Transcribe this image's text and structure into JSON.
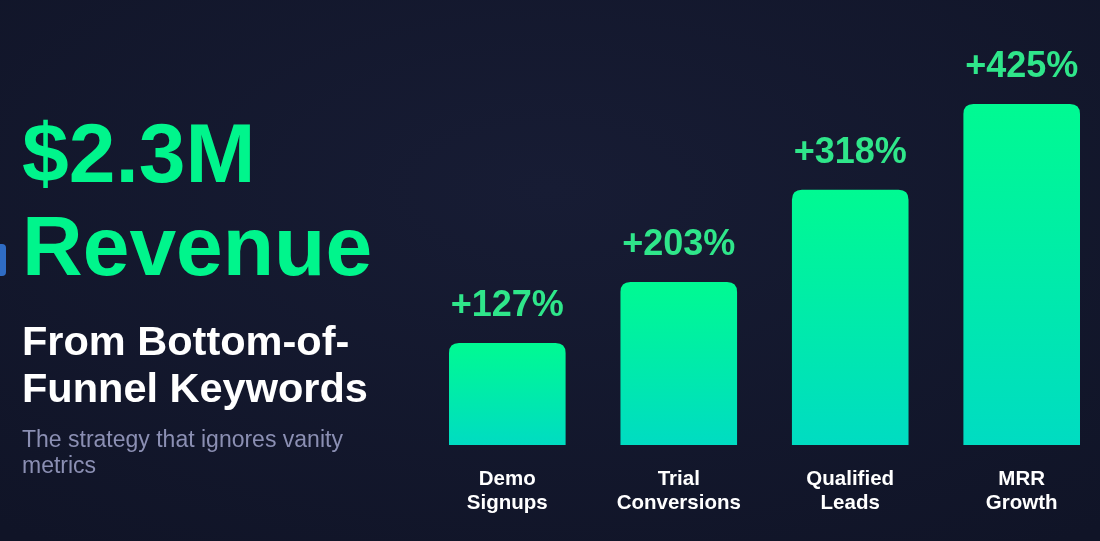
{
  "chart_data": {
    "type": "bar",
    "title": "$2.3M Revenue",
    "subtitle": "From Bottom-of-Funnel Keywords",
    "annotations": [
      "The strategy that ignores vanity metrics"
    ],
    "categories": [
      "Demo Signups",
      "Trial Conversions",
      "Qualified Leads",
      "MRR Growth"
    ],
    "values": [
      127,
      203,
      318,
      425
    ],
    "value_labels": [
      "+127%",
      "+203%",
      "+318%",
      "+425%"
    ],
    "color": "#00f08c"
  }
}
